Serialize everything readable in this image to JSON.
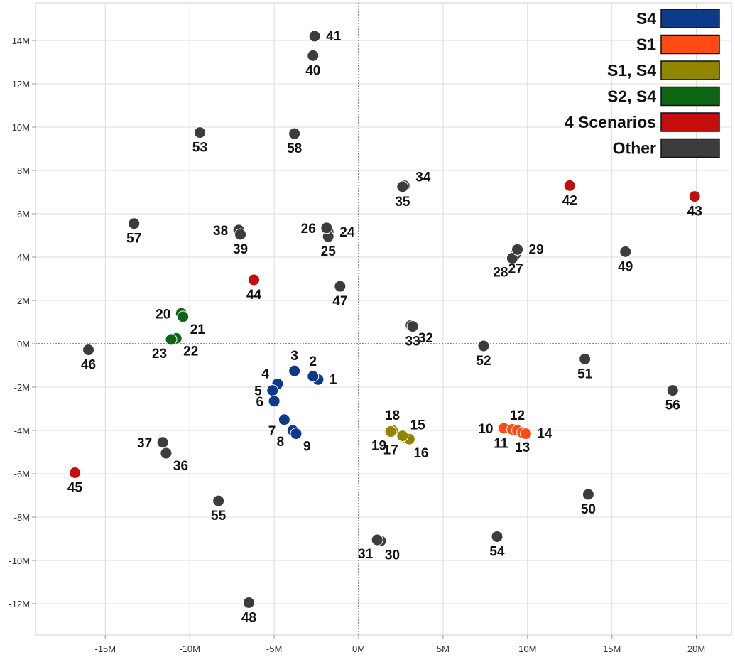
{
  "chart_data": {
    "type": "scatter",
    "xlabel": "",
    "ylabel": "",
    "xlim": [
      -19000000,
      22000000
    ],
    "ylim": [
      -13500000,
      15500000
    ],
    "grid": true,
    "reference_lines": [
      {
        "axis": "x",
        "value": 0,
        "style": "dotted"
      },
      {
        "axis": "y",
        "value": 0,
        "style": "dotted"
      }
    ],
    "x_ticks": [
      {
        "value": -15000000,
        "label": "-15M"
      },
      {
        "value": -10000000,
        "label": "-10M"
      },
      {
        "value": -5000000,
        "label": "-5M"
      },
      {
        "value": 0,
        "label": "0M"
      },
      {
        "value": 5000000,
        "label": "5M"
      },
      {
        "value": 10000000,
        "label": "10M"
      },
      {
        "value": 15000000,
        "label": "15M"
      },
      {
        "value": 20000000,
        "label": "20M"
      }
    ],
    "y_ticks": [
      {
        "value": 14000000,
        "label": "14M"
      },
      {
        "value": 12000000,
        "label": "12M"
      },
      {
        "value": 10000000,
        "label": "10M"
      },
      {
        "value": 8000000,
        "label": "8M"
      },
      {
        "value": 6000000,
        "label": "6M"
      },
      {
        "value": 4000000,
        "label": "4M"
      },
      {
        "value": 2000000,
        "label": "2M"
      },
      {
        "value": 0,
        "label": "0M"
      },
      {
        "value": -2000000,
        "label": "-2M"
      },
      {
        "value": -4000000,
        "label": "-4M"
      },
      {
        "value": -6000000,
        "label": "-6M"
      },
      {
        "value": -8000000,
        "label": "-8M"
      },
      {
        "value": -10000000,
        "label": "-10M"
      },
      {
        "value": -12000000,
        "label": "-12M"
      }
    ],
    "legend_position": "top-right",
    "series": [
      {
        "name": "S4",
        "color": "#0d3a8a",
        "points": [
          {
            "id": "1",
            "x": -2400000,
            "y": -1650000
          },
          {
            "id": "2",
            "x": -2700000,
            "y": -1500000
          },
          {
            "id": "3",
            "x": -3800000,
            "y": -1250000
          },
          {
            "id": "4",
            "x": -4800000,
            "y": -1850000
          },
          {
            "id": "5",
            "x": -5100000,
            "y": -2150000
          },
          {
            "id": "6",
            "x": -5000000,
            "y": -2650000
          },
          {
            "id": "7",
            "x": -4400000,
            "y": -3500000
          },
          {
            "id": "8",
            "x": -3900000,
            "y": -4000000
          },
          {
            "id": "9",
            "x": -3700000,
            "y": -4150000
          }
        ]
      },
      {
        "name": "S1",
        "color": "#ff4a14",
        "points": [
          {
            "id": "10",
            "x": 8600000,
            "y": -3900000
          },
          {
            "id": "11",
            "x": 9100000,
            "y": -3950000
          },
          {
            "id": "12",
            "x": 9400000,
            "y": -4000000
          },
          {
            "id": "13",
            "x": 9700000,
            "y": -4100000
          },
          {
            "id": "14",
            "x": 9900000,
            "y": -4150000
          }
        ]
      },
      {
        "name": "S1, S4",
        "color": "#8f8500",
        "points": [
          {
            "id": "15",
            "x": 2800000,
            "y": -4350000
          },
          {
            "id": "16",
            "x": 3000000,
            "y": -4400000
          },
          {
            "id": "17",
            "x": 2600000,
            "y": -4250000
          },
          {
            "id": "18",
            "x": 2000000,
            "y": -4000000
          },
          {
            "id": "19",
            "x": 1900000,
            "y": -4050000
          }
        ]
      },
      {
        "name": "S2, S4",
        "color": "#0d6614",
        "points": [
          {
            "id": "20",
            "x": -10500000,
            "y": 1400000
          },
          {
            "id": "21",
            "x": -10400000,
            "y": 1250000
          },
          {
            "id": "22",
            "x": -10800000,
            "y": 250000
          },
          {
            "id": "23",
            "x": -11100000,
            "y": 200000
          }
        ]
      },
      {
        "name": "4 Scenarios",
        "color": "#c40e0e",
        "points": [
          {
            "id": "42",
            "x": 12500000,
            "y": 7300000
          },
          {
            "id": "43",
            "x": 19900000,
            "y": 6800000
          },
          {
            "id": "44",
            "x": -6200000,
            "y": 2950000
          },
          {
            "id": "45",
            "x": -16800000,
            "y": -5950000
          }
        ]
      },
      {
        "name": "Other",
        "color": "#3c3c3c",
        "points": [
          {
            "id": "24",
            "x": -1800000,
            "y": 5150000
          },
          {
            "id": "25",
            "x": -1800000,
            "y": 4950000
          },
          {
            "id": "26",
            "x": -1900000,
            "y": 5350000
          },
          {
            "id": "27",
            "x": 9300000,
            "y": 4150000
          },
          {
            "id": "28",
            "x": 9100000,
            "y": 3950000
          },
          {
            "id": "29",
            "x": 9400000,
            "y": 4350000
          },
          {
            "id": "30",
            "x": 1300000,
            "y": -9100000
          },
          {
            "id": "31",
            "x": 1100000,
            "y": -9050000
          },
          {
            "id": "32",
            "x": 3100000,
            "y": 850000
          },
          {
            "id": "33",
            "x": 3200000,
            "y": 800000
          },
          {
            "id": "34",
            "x": 2700000,
            "y": 7300000
          },
          {
            "id": "35",
            "x": 2600000,
            "y": 7250000
          },
          {
            "id": "36",
            "x": -11400000,
            "y": -5050000
          },
          {
            "id": "37",
            "x": -11600000,
            "y": -4550000
          },
          {
            "id": "38",
            "x": -7100000,
            "y": 5250000
          },
          {
            "id": "39",
            "x": -7000000,
            "y": 5050000
          },
          {
            "id": "40",
            "x": -2700000,
            "y": 13300000
          },
          {
            "id": "41",
            "x": -2600000,
            "y": 14200000
          },
          {
            "id": "46",
            "x": -16000000,
            "y": -280000
          },
          {
            "id": "47",
            "x": -1100000,
            "y": 2650000
          },
          {
            "id": "48",
            "x": -6500000,
            "y": -11950000
          },
          {
            "id": "49",
            "x": 15800000,
            "y": 4250000
          },
          {
            "id": "50",
            "x": 13600000,
            "y": -6950000
          },
          {
            "id": "51",
            "x": 13400000,
            "y": -700000
          },
          {
            "id": "52",
            "x": 7400000,
            "y": -100000
          },
          {
            "id": "53",
            "x": -9400000,
            "y": 9750000
          },
          {
            "id": "54",
            "x": 8200000,
            "y": -8900000
          },
          {
            "id": "55",
            "x": -8300000,
            "y": -7250000
          },
          {
            "id": "56",
            "x": 18600000,
            "y": -2150000
          },
          {
            "id": "57",
            "x": -13300000,
            "y": 5550000
          },
          {
            "id": "58",
            "x": -3800000,
            "y": 9700000
          }
        ]
      }
    ],
    "point_labels": [
      {
        "id": "1",
        "text": "1",
        "anchor": "right"
      },
      {
        "id": "2",
        "text": "2",
        "anchor": "above"
      },
      {
        "id": "3",
        "text": "3",
        "anchor": "above"
      },
      {
        "id": "4",
        "text": "4",
        "anchor": "left-above"
      },
      {
        "id": "5",
        "text": "5",
        "anchor": "left"
      },
      {
        "id": "6",
        "text": "6",
        "anchor": "left"
      },
      {
        "id": "7",
        "text": "7",
        "anchor": "left-below"
      },
      {
        "id": "8",
        "text": "8",
        "anchor": "left-below"
      },
      {
        "id": "9",
        "text": "9",
        "anchor": "right-below"
      },
      {
        "id": "10",
        "text": "10",
        "anchor": "left"
      },
      {
        "id": "11",
        "text": "11",
        "anchor": "below-left"
      },
      {
        "id": "12",
        "text": "12",
        "anchor": "above"
      },
      {
        "id": "13",
        "text": "13",
        "anchor": "below"
      },
      {
        "id": "14",
        "text": "14",
        "anchor": "right"
      },
      {
        "id": "15",
        "text": "15",
        "anchor": "above-right"
      },
      {
        "id": "16",
        "text": "16",
        "anchor": "below-right"
      },
      {
        "id": "17",
        "text": "17",
        "anchor": "below-left"
      },
      {
        "id": "18",
        "text": "18",
        "anchor": "above"
      },
      {
        "id": "19",
        "text": "19",
        "anchor": "below-left"
      },
      {
        "id": "20",
        "text": "20",
        "anchor": "left"
      },
      {
        "id": "21",
        "text": "21",
        "anchor": "right-below"
      },
      {
        "id": "22",
        "text": "22",
        "anchor": "right-below"
      },
      {
        "id": "23",
        "text": "23",
        "anchor": "below-left"
      },
      {
        "id": "24",
        "text": "24",
        "anchor": "right"
      },
      {
        "id": "25",
        "text": "25",
        "anchor": "below"
      },
      {
        "id": "26",
        "text": "26",
        "anchor": "left"
      },
      {
        "id": "27",
        "text": "27",
        "anchor": "below"
      },
      {
        "id": "28",
        "text": "28",
        "anchor": "below-left"
      },
      {
        "id": "29",
        "text": "29",
        "anchor": "right"
      },
      {
        "id": "30",
        "text": "30",
        "anchor": "below-right"
      },
      {
        "id": "31",
        "text": "31",
        "anchor": "below-left"
      },
      {
        "id": "32",
        "text": "32",
        "anchor": "right-below"
      },
      {
        "id": "33",
        "text": "33",
        "anchor": "below"
      },
      {
        "id": "34",
        "text": "34",
        "anchor": "right-above"
      },
      {
        "id": "35",
        "text": "35",
        "anchor": "below"
      },
      {
        "id": "36",
        "text": "36",
        "anchor": "right-below"
      },
      {
        "id": "37",
        "text": "37",
        "anchor": "left"
      },
      {
        "id": "38",
        "text": "38",
        "anchor": "left"
      },
      {
        "id": "39",
        "text": "39",
        "anchor": "below"
      },
      {
        "id": "40",
        "text": "40",
        "anchor": "below"
      },
      {
        "id": "41",
        "text": "41",
        "anchor": "right"
      },
      {
        "id": "42",
        "text": "42",
        "anchor": "below"
      },
      {
        "id": "43",
        "text": "43",
        "anchor": "below"
      },
      {
        "id": "44",
        "text": "44",
        "anchor": "below"
      },
      {
        "id": "45",
        "text": "45",
        "anchor": "below"
      },
      {
        "id": "46",
        "text": "46",
        "anchor": "below"
      },
      {
        "id": "47",
        "text": "47",
        "anchor": "below"
      },
      {
        "id": "48",
        "text": "48",
        "anchor": "below"
      },
      {
        "id": "49",
        "text": "49",
        "anchor": "below"
      },
      {
        "id": "50",
        "text": "50",
        "anchor": "below"
      },
      {
        "id": "51",
        "text": "51",
        "anchor": "below"
      },
      {
        "id": "52",
        "text": "52",
        "anchor": "below"
      },
      {
        "id": "53",
        "text": "53",
        "anchor": "below"
      },
      {
        "id": "54",
        "text": "54",
        "anchor": "below"
      },
      {
        "id": "55",
        "text": "55",
        "anchor": "below"
      },
      {
        "id": "56",
        "text": "56",
        "anchor": "below"
      },
      {
        "id": "57",
        "text": "57",
        "anchor": "below"
      },
      {
        "id": "58",
        "text": "58",
        "anchor": "below"
      }
    ]
  }
}
